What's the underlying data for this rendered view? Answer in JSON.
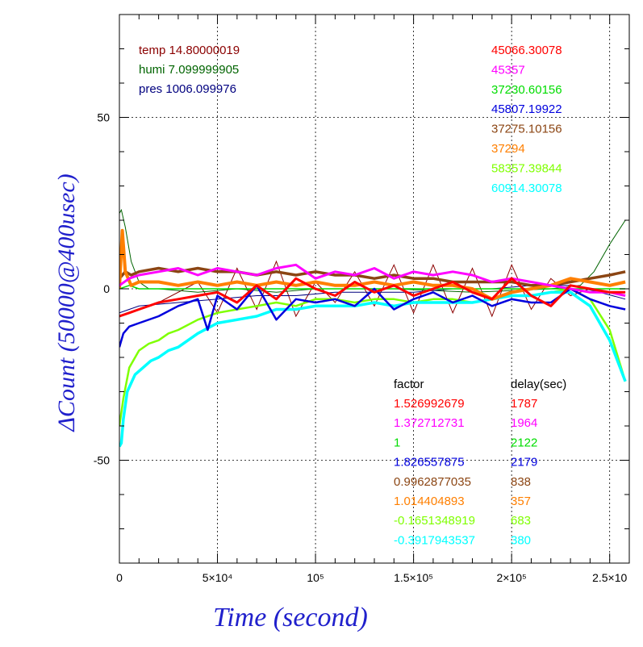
{
  "chart_data": {
    "type": "line",
    "title": "",
    "xlabel": "Time (second)",
    "ylabel": "ΔCount (50000@400usec)",
    "xlim": [
      0,
      260000
    ],
    "ylim": [
      -80,
      80
    ],
    "grid": true,
    "x_ticks": [
      {
        "value": 0,
        "label": "0"
      },
      {
        "value": 50000,
        "label": "5×10⁴"
      },
      {
        "value": 100000,
        "label": "10⁵"
      },
      {
        "value": 150000,
        "label": "1.5×10⁵"
      },
      {
        "value": 200000,
        "label": "2×10⁵"
      },
      {
        "value": 250000,
        "label": "2.5×10"
      }
    ],
    "y_ticks": [
      {
        "value": 50,
        "label": "50"
      },
      {
        "value": 0,
        "label": "0"
      },
      {
        "value": -50,
        "label": "-50"
      }
    ],
    "env_legend": [
      {
        "text": "temp 14.80000019",
        "color": "#8b0000"
      },
      {
        "text": "humi 7.099999905",
        "color": "#006400"
      },
      {
        "text": "pres 1006.099976",
        "color": "#00007f"
      }
    ],
    "factor_header": "factor",
    "delay_header": "delay(sec)",
    "series": [
      {
        "offset": "45066.30078",
        "factor": "1.526992679",
        "delay": "1787",
        "color": "#ff0000",
        "x": [
          0,
          5000,
          10000,
          20000,
          30000,
          40000,
          50000,
          60000,
          70000,
          80000,
          90000,
          100000,
          110000,
          120000,
          130000,
          140000,
          150000,
          160000,
          170000,
          180000,
          190000,
          200000,
          210000,
          220000,
          230000,
          240000,
          250000,
          258000
        ],
        "y": [
          -8,
          -7,
          -6,
          -4,
          -3,
          -2,
          -1,
          -4,
          1,
          -3,
          3,
          0,
          -2,
          2,
          -1,
          1,
          -2,
          0,
          2,
          -1,
          -3,
          3,
          -2,
          -5,
          1,
          0,
          -1,
          -1
        ]
      },
      {
        "offset": "45357",
        "factor": "1.372712731",
        "delay": "1964",
        "color": "#ff00ff",
        "x": [
          0,
          5000,
          10000,
          20000,
          30000,
          40000,
          50000,
          60000,
          70000,
          80000,
          90000,
          100000,
          110000,
          120000,
          130000,
          140000,
          150000,
          160000,
          170000,
          180000,
          190000,
          200000,
          210000,
          220000,
          230000,
          240000,
          250000,
          258000
        ],
        "y": [
          1,
          3,
          4,
          5,
          6,
          4,
          6,
          5,
          4,
          6,
          7,
          3,
          5,
          4,
          6,
          3,
          5,
          4,
          5,
          4,
          2,
          3,
          2,
          1,
          0,
          -1,
          -1,
          -2
        ]
      },
      {
        "offset": "37230.60156",
        "factor": "1",
        "delay": "2122",
        "color": "#00dd00",
        "x": [
          0,
          5000,
          10000,
          20000,
          30000,
          40000,
          50000,
          60000,
          70000,
          80000,
          90000,
          100000,
          110000,
          120000,
          130000,
          140000,
          150000,
          160000,
          170000,
          180000,
          190000,
          200000,
          210000,
          220000,
          230000,
          240000,
          250000,
          258000
        ],
        "y": [
          0,
          1,
          0,
          0,
          0,
          0,
          0,
          0,
          0,
          0,
          0,
          0,
          0,
          0,
          0,
          0,
          0,
          0,
          0,
          0,
          0,
          0,
          0,
          0,
          0,
          0,
          0,
          0
        ]
      },
      {
        "offset": "45807.19922",
        "factor": "1.826557875",
        "delay": "2179",
        "color": "#0000dd",
        "x": [
          0,
          2000,
          5000,
          10000,
          20000,
          30000,
          40000,
          45000,
          50000,
          60000,
          70000,
          80000,
          90000,
          100000,
          110000,
          120000,
          130000,
          140000,
          150000,
          160000,
          170000,
          180000,
          190000,
          200000,
          210000,
          220000,
          230000,
          240000,
          250000,
          258000
        ],
        "y": [
          -17,
          -13,
          -11,
          -10,
          -8,
          -5,
          -3,
          -12,
          -2,
          -6,
          1,
          -9,
          -3,
          -4,
          -3,
          -5,
          0,
          -6,
          -3,
          -1,
          -4,
          -2,
          -5,
          -3,
          -4,
          -4,
          0,
          -3,
          -5,
          -6
        ]
      },
      {
        "offset": "37275.10156",
        "factor": "0.9962877035",
        "delay": "838",
        "color": "#8b4513",
        "x": [
          0,
          3000,
          6000,
          10000,
          20000,
          30000,
          40000,
          50000,
          60000,
          70000,
          80000,
          90000,
          100000,
          110000,
          120000,
          130000,
          140000,
          150000,
          160000,
          170000,
          180000,
          190000,
          200000,
          210000,
          220000,
          230000,
          240000,
          250000,
          258000
        ],
        "y": [
          3,
          5,
          4,
          5,
          6,
          5,
          6,
          5,
          5,
          4,
          5,
          4,
          5,
          4,
          4,
          3,
          4,
          3,
          3,
          2,
          2,
          2,
          2,
          1,
          1,
          2,
          3,
          4,
          5
        ]
      },
      {
        "offset": "37294",
        "factor": "1.014404893",
        "delay": "357",
        "color": "#ff7f00",
        "x": [
          0,
          1500,
          3000,
          6000,
          10000,
          20000,
          30000,
          40000,
          50000,
          60000,
          70000,
          80000,
          90000,
          100000,
          110000,
          120000,
          130000,
          140000,
          150000,
          160000,
          170000,
          180000,
          190000,
          200000,
          210000,
          220000,
          230000,
          240000,
          250000,
          258000
        ],
        "y": [
          0,
          17,
          5,
          1,
          2,
          2,
          1,
          2,
          1,
          2,
          1,
          2,
          1,
          2,
          1,
          1,
          2,
          1,
          2,
          1,
          1,
          0,
          -3,
          -1,
          0,
          1,
          3,
          2,
          1,
          2
        ]
      },
      {
        "offset": "58357.39844",
        "factor": "-0.1651348919",
        "delay": "683",
        "color": "#7fff00",
        "x": [
          0,
          2000,
          5000,
          10000,
          15000,
          20000,
          25000,
          30000,
          40000,
          50000,
          60000,
          70000,
          80000,
          90000,
          100000,
          110000,
          120000,
          130000,
          140000,
          150000,
          160000,
          170000,
          180000,
          190000,
          200000,
          210000,
          220000,
          230000,
          240000,
          250000,
          258000
        ],
        "y": [
          -40,
          -32,
          -23,
          -18,
          -16,
          -15,
          -13,
          -12,
          -9,
          -7,
          -6,
          -5,
          -4,
          -5,
          -3,
          -3,
          -4,
          -3,
          -3,
          -4,
          -3,
          -3,
          -4,
          -3,
          -2,
          -2,
          -1,
          0,
          -3,
          -12,
          -27
        ]
      },
      {
        "offset": "60914.30078",
        "factor": "-0.3917943537",
        "delay": "380",
        "color": "#00ffff",
        "x": [
          0,
          1000,
          2000,
          4000,
          8000,
          12000,
          16000,
          20000,
          25000,
          30000,
          40000,
          50000,
          60000,
          70000,
          80000,
          90000,
          100000,
          110000,
          120000,
          130000,
          140000,
          150000,
          160000,
          170000,
          180000,
          190000,
          200000,
          210000,
          220000,
          230000,
          240000,
          250000,
          258000
        ],
        "y": [
          -46,
          -45,
          -38,
          -30,
          -25,
          -23,
          -21,
          -20,
          -18,
          -17,
          -13,
          -10,
          -9,
          -8,
          -6,
          -6,
          -5,
          -5,
          -5,
          -4,
          -5,
          -4,
          -4,
          -4,
          -4,
          -3,
          -2,
          -2,
          -1,
          -1,
          -5,
          -15,
          -27
        ]
      }
    ],
    "env_series": [
      {
        "name": "temp",
        "color": "#8b0000",
        "x": [
          0,
          20000,
          40000,
          50000,
          60000,
          70000,
          80000,
          90000,
          100000,
          110000,
          120000,
          130000,
          140000,
          150000,
          160000,
          170000,
          180000,
          190000,
          200000,
          210000,
          220000,
          230000,
          240000,
          250000,
          258000
        ],
        "y": [
          -8,
          -4,
          2,
          -7,
          6,
          -6,
          8,
          -8,
          2,
          -4,
          5,
          -5,
          7,
          -7,
          7,
          -7,
          6,
          -8,
          7,
          -6,
          3,
          -2,
          0,
          -1,
          -1
        ]
      },
      {
        "name": "humi",
        "color": "#006400",
        "x": [
          0,
          1000,
          3000,
          6000,
          10000,
          15000,
          20000,
          40000,
          60000,
          80000,
          100000,
          140000,
          180000,
          220000,
          235000,
          242000,
          250000,
          258000
        ],
        "y": [
          22,
          23,
          18,
          8,
          2,
          0,
          0,
          -1,
          0,
          -1,
          0,
          0,
          -1,
          0,
          1,
          5,
          13,
          20
        ]
      },
      {
        "name": "pres",
        "color": "#00007f",
        "x": [
          0,
          5000,
          10000,
          30000,
          50000,
          70000,
          90000,
          110000,
          130000,
          150000,
          170000,
          190000,
          210000,
          230000,
          245000,
          258000
        ],
        "y": [
          -7,
          -6,
          -5,
          -4,
          -3,
          -2,
          -2,
          -1,
          -1,
          -1,
          0,
          0,
          1,
          1,
          -1,
          -3
        ]
      }
    ]
  }
}
